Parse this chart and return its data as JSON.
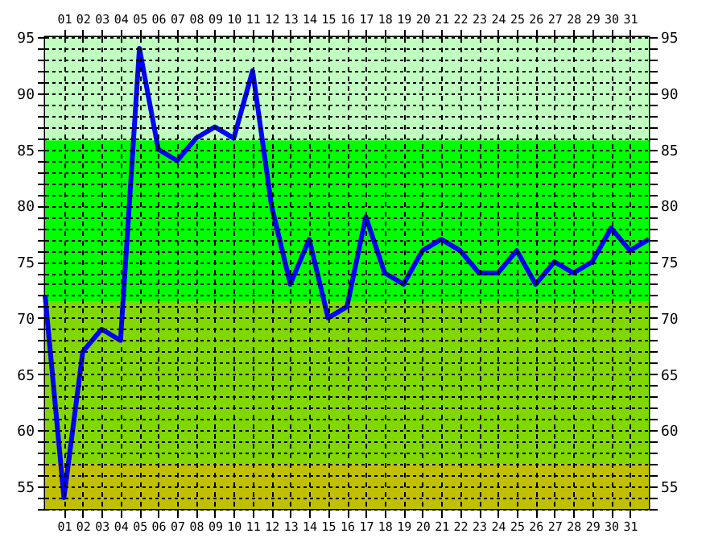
{
  "chart_data": {
    "type": "line",
    "x": [
      0,
      1,
      2,
      3,
      4,
      5,
      6,
      7,
      8,
      9,
      10,
      11,
      12,
      13,
      14,
      15,
      16,
      17,
      18,
      19,
      20,
      21,
      22,
      23,
      24,
      25,
      26,
      27,
      28,
      29,
      30,
      31,
      32
    ],
    "series": [
      {
        "color": "#0000ff",
        "values": [
          72,
          54,
          67,
          69,
          68,
          94,
          85,
          84,
          86,
          87,
          86,
          92,
          80,
          73,
          77,
          70,
          71,
          79,
          74,
          73,
          76,
          77,
          76,
          74,
          74,
          76,
          73,
          75,
          74,
          75,
          78,
          76,
          77
        ]
      }
    ],
    "xlim": [
      0,
      32
    ],
    "xticks": [
      {
        "value": 1,
        "label": "01"
      },
      {
        "value": 2,
        "label": "02"
      },
      {
        "value": 3,
        "label": "03"
      },
      {
        "value": 4,
        "label": "04"
      },
      {
        "value": 5,
        "label": "05"
      },
      {
        "value": 6,
        "label": "06"
      },
      {
        "value": 7,
        "label": "07"
      },
      {
        "value": 8,
        "label": "08"
      },
      {
        "value": 9,
        "label": "09"
      },
      {
        "value": 10,
        "label": "10"
      },
      {
        "value": 11,
        "label": "11"
      },
      {
        "value": 12,
        "label": "12"
      },
      {
        "value": 13,
        "label": "13"
      },
      {
        "value": 14,
        "label": "14"
      },
      {
        "value": 15,
        "label": "15"
      },
      {
        "value": 16,
        "label": "16"
      },
      {
        "value": 17,
        "label": "17"
      },
      {
        "value": 18,
        "label": "18"
      },
      {
        "value": 19,
        "label": "19"
      },
      {
        "value": 20,
        "label": "20"
      },
      {
        "value": 21,
        "label": "21"
      },
      {
        "value": 22,
        "label": "22"
      },
      {
        "value": 23,
        "label": "23"
      },
      {
        "value": 24,
        "label": "24"
      },
      {
        "value": 25,
        "label": "25"
      },
      {
        "value": 26,
        "label": "26"
      },
      {
        "value": 27,
        "label": "27"
      },
      {
        "value": 28,
        "label": "28"
      },
      {
        "value": 29,
        "label": "29"
      },
      {
        "value": 30,
        "label": "30"
      },
      {
        "value": 31,
        "label": "31"
      }
    ],
    "x2lim": [
      0,
      32
    ],
    "x2ticks": [
      {
        "value": 1,
        "label": "01"
      },
      {
        "value": 2,
        "label": "02"
      },
      {
        "value": 3,
        "label": "03"
      },
      {
        "value": 4,
        "label": "04"
      },
      {
        "value": 5,
        "label": "05"
      },
      {
        "value": 6,
        "label": "06"
      },
      {
        "value": 7,
        "label": "07"
      },
      {
        "value": 8,
        "label": "08"
      },
      {
        "value": 9,
        "label": "09"
      },
      {
        "value": 10,
        "label": "10"
      },
      {
        "value": 11,
        "label": "11"
      },
      {
        "value": 12,
        "label": "12"
      },
      {
        "value": 13,
        "label": "13"
      },
      {
        "value": 14,
        "label": "14"
      },
      {
        "value": 15,
        "label": "15"
      },
      {
        "value": 16,
        "label": "16"
      },
      {
        "value": 17,
        "label": "17"
      },
      {
        "value": 18,
        "label": "18"
      },
      {
        "value": 19,
        "label": "19"
      },
      {
        "value": 20,
        "label": "20"
      },
      {
        "value": 21,
        "label": "21"
      },
      {
        "value": 22,
        "label": "22"
      },
      {
        "value": 23,
        "label": "23"
      },
      {
        "value": 24,
        "label": "24"
      },
      {
        "value": 25,
        "label": "25"
      },
      {
        "value": 26,
        "label": "26"
      },
      {
        "value": 27,
        "label": "27"
      },
      {
        "value": 28,
        "label": "28"
      },
      {
        "value": 29,
        "label": "29"
      },
      {
        "value": 30,
        "label": "30"
      },
      {
        "value": 31,
        "label": "31"
      }
    ],
    "ylim": [
      53,
      95
    ],
    "yticks": [
      {
        "value": 53,
        "label": null
      },
      {
        "value": 54,
        "label": null
      },
      55,
      {
        "value": 56,
        "label": null
      },
      {
        "value": 57,
        "label": null
      },
      {
        "value": 58,
        "label": null
      },
      {
        "value": 59,
        "label": null
      },
      60,
      {
        "value": 61,
        "label": null
      },
      {
        "value": 62,
        "label": null
      },
      {
        "value": 63,
        "label": null
      },
      {
        "value": 64,
        "label": null
      },
      65,
      {
        "value": 66,
        "label": null
      },
      {
        "value": 67,
        "label": null
      },
      {
        "value": 68,
        "label": null
      },
      {
        "value": 69,
        "label": null
      },
      70,
      {
        "value": 71,
        "label": null
      },
      {
        "value": 72,
        "label": null
      },
      {
        "value": 73,
        "label": null
      },
      {
        "value": 74,
        "label": null
      },
      75,
      {
        "value": 76,
        "label": null
      },
      {
        "value": 77,
        "label": null
      },
      {
        "value": 78,
        "label": null
      },
      {
        "value": 79,
        "label": null
      },
      80,
      {
        "value": 81,
        "label": null
      },
      {
        "value": 82,
        "label": null
      },
      {
        "value": 83,
        "label": null
      },
      {
        "value": 84,
        "label": null
      },
      85,
      {
        "value": 86,
        "label": null
      },
      {
        "value": 87,
        "label": null
      },
      {
        "value": 88,
        "label": null
      },
      {
        "value": 89,
        "label": null
      },
      90,
      {
        "value": 91,
        "label": null
      },
      {
        "value": 92,
        "label": null
      },
      {
        "value": 93,
        "label": null
      },
      {
        "value": 94,
        "label": null
      },
      95
    ],
    "y2lim": [
      53,
      95
    ],
    "y2ticks": [
      {
        "value": 53,
        "label": null
      },
      {
        "value": 54,
        "label": null
      },
      55,
      {
        "value": 56,
        "label": null
      },
      {
        "value": 57,
        "label": null
      },
      {
        "value": 58,
        "label": null
      },
      {
        "value": 59,
        "label": null
      },
      60,
      {
        "value": 61,
        "label": null
      },
      {
        "value": 62,
        "label": null
      },
      {
        "value": 63,
        "label": null
      },
      {
        "value": 64,
        "label": null
      },
      65,
      {
        "value": 66,
        "label": null
      },
      {
        "value": 67,
        "label": null
      },
      {
        "value": 68,
        "label": null
      },
      {
        "value": 69,
        "label": null
      },
      70,
      {
        "value": 71,
        "label": null
      },
      {
        "value": 72,
        "label": null
      },
      {
        "value": 73,
        "label": null
      },
      {
        "value": 74,
        "label": null
      },
      75,
      {
        "value": 76,
        "label": null
      },
      {
        "value": 77,
        "label": null
      },
      {
        "value": 78,
        "label": null
      },
      {
        "value": 79,
        "label": null
      },
      80,
      {
        "value": 81,
        "label": null
      },
      {
        "value": 82,
        "label": null
      },
      {
        "value": 83,
        "label": null
      },
      {
        "value": 84,
        "label": null
      },
      85,
      {
        "value": 86,
        "label": null
      },
      {
        "value": 87,
        "label": null
      },
      {
        "value": 88,
        "label": null
      },
      {
        "value": 89,
        "label": null
      },
      90,
      {
        "value": 91,
        "label": null
      },
      {
        "value": 92,
        "label": null
      },
      {
        "value": 93,
        "label": null
      },
      {
        "value": 94,
        "label": null
      },
      95
    ],
    "bands": [
      {
        "axis": "y",
        "from": 85.8,
        "to": 95,
        "color": "#c0ffc0"
      },
      {
        "axis": "y",
        "from": 71.5,
        "to": 85.8,
        "color": "#00ff00"
      },
      {
        "axis": "y",
        "from": 57,
        "to": 71.5,
        "color": "#80d800"
      },
      {
        "axis": "y",
        "from": 53,
        "to": 57,
        "color": "#c0c000"
      }
    ],
    "grid": true,
    "line_style": "solid",
    "marker": "none"
  }
}
